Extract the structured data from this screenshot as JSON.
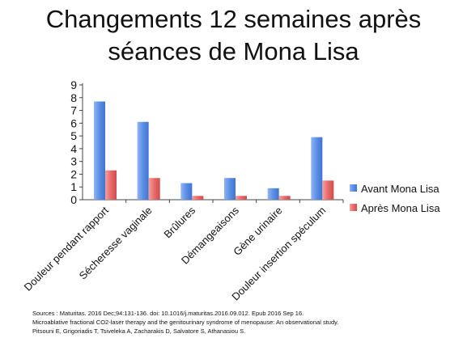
{
  "chart_data": {
    "type": "bar",
    "title_lines": [
      "Changements 12 semaines après",
      "séances de Mona Lisa"
    ],
    "categories": [
      "Douleur pendant rapport",
      "Sécheresse vaginale",
      "Brûlures",
      "Démangeaisons",
      "Gène urinaire",
      "Douleur insertion spéculum"
    ],
    "series": [
      {
        "name": "Avant Mona Lisa",
        "values": [
          7.7,
          6.1,
          1.3,
          1.7,
          0.9,
          4.9
        ],
        "color": "#5b8ee6"
      },
      {
        "name": "Après Mona Lisa",
        "values": [
          2.3,
          1.7,
          0.3,
          0.3,
          0.3,
          1.5
        ],
        "color": "#e86a6a"
      }
    ],
    "ylim": [
      0,
      9
    ],
    "yticks": [
      0,
      1,
      2,
      3,
      4,
      5,
      6,
      7,
      8,
      9
    ],
    "grid": false,
    "legend": "right"
  },
  "sources": [
    "Sources : Maturitas. 2016 Dec;94:131-136. doi: 10.1016/j.maturitas.2016.09.012. Epub 2016 Sep 16.",
    "Microablative fractional CO2-laser therapy and the genitourinary syndrome of menopause: An observational study.",
    "Pitsouni E, Grigoriadis T, Tsiveleka A, Zacharakis D, Salvatore S, Athanasiou S."
  ]
}
